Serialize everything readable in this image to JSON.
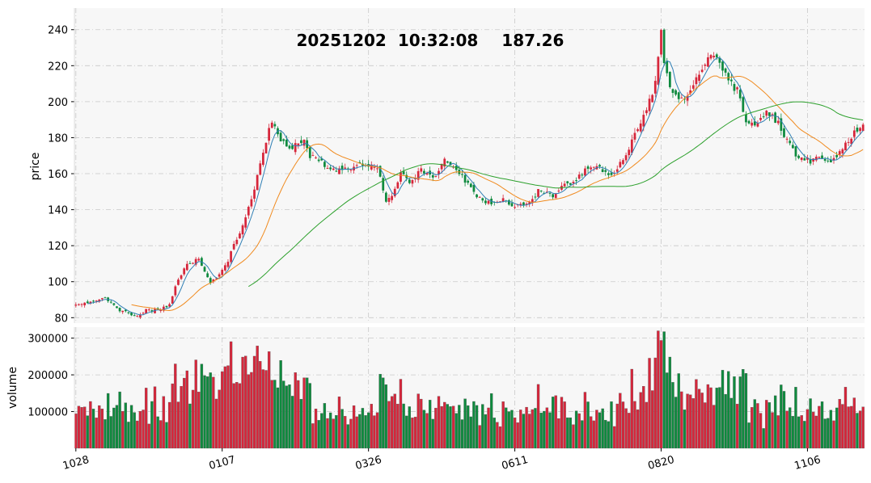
{
  "chart_data": {
    "type": "candlestick",
    "title": {
      "date": "20251202",
      "time": "10:32:08",
      "price": "187.26"
    },
    "price_panel": {
      "ylabel": "price",
      "ylim": [
        77,
        252
      ],
      "yticks": [
        80,
        100,
        120,
        140,
        160,
        180,
        200,
        220,
        240
      ]
    },
    "volume_panel": {
      "ylabel": "volume",
      "ylim": [
        0,
        330000
      ],
      "yticks": [
        100000,
        200000,
        300000
      ]
    },
    "x_tick_labels": [
      "1028",
      "0107",
      "0326",
      "0611",
      "0820",
      "1106"
    ],
    "x_tick_indices": [
      0,
      50,
      100,
      150,
      200,
      250
    ],
    "bar_count": 270,
    "close_keyframes": [
      [
        0,
        87
      ],
      [
        10,
        91
      ],
      [
        14,
        85
      ],
      [
        20,
        81
      ],
      [
        24,
        84
      ],
      [
        28,
        84
      ],
      [
        32,
        87
      ],
      [
        34,
        97
      ],
      [
        38,
        110
      ],
      [
        42,
        113
      ],
      [
        46,
        100
      ],
      [
        48,
        102
      ],
      [
        52,
        112
      ],
      [
        56,
        128
      ],
      [
        60,
        145
      ],
      [
        64,
        172
      ],
      [
        67,
        190
      ],
      [
        70,
        178
      ],
      [
        74,
        175
      ],
      [
        78,
        180
      ],
      [
        80,
        170
      ],
      [
        84,
        166
      ],
      [
        88,
        163
      ],
      [
        92,
        162
      ],
      [
        96,
        164
      ],
      [
        100,
        165
      ],
      [
        103,
        163
      ],
      [
        106,
        145
      ],
      [
        108,
        148
      ],
      [
        111,
        160
      ],
      [
        114,
        155
      ],
      [
        118,
        163
      ],
      [
        122,
        157
      ],
      [
        126,
        167
      ],
      [
        130,
        163
      ],
      [
        134,
        154
      ],
      [
        138,
        146
      ],
      [
        142,
        143
      ],
      [
        146,
        146
      ],
      [
        150,
        142
      ],
      [
        154,
        143
      ],
      [
        158,
        150
      ],
      [
        163,
        148
      ],
      [
        167,
        153
      ],
      [
        171,
        157
      ],
      [
        175,
        163
      ],
      [
        179,
        163
      ],
      [
        183,
        160
      ],
      [
        187,
        168
      ],
      [
        191,
        182
      ],
      [
        195,
        195
      ],
      [
        198,
        210
      ],
      [
        200,
        240
      ],
      [
        201,
        220
      ],
      [
        204,
        205
      ],
      [
        208,
        200
      ],
      [
        212,
        212
      ],
      [
        216,
        225
      ],
      [
        220,
        222
      ],
      [
        223,
        212
      ],
      [
        226,
        206
      ],
      [
        229,
        188
      ],
      [
        232,
        187
      ],
      [
        236,
        195
      ],
      [
        240,
        188
      ],
      [
        243,
        178
      ],
      [
        247,
        168
      ],
      [
        251,
        167
      ],
      [
        255,
        169
      ],
      [
        259,
        167
      ],
      [
        263,
        176
      ],
      [
        266,
        183
      ],
      [
        269,
        187.26
      ]
    ],
    "ma_short_window": 5,
    "ma_medium_window": 20,
    "ma_long_window": 60,
    "series_colors": {
      "up": "#d6263b",
      "down": "#0e8a3e",
      "ma_short": "#2f7fb5",
      "ma_medium": "#f08a1e",
      "ma_long": "#2ca02c"
    },
    "background": "#f7f7f7",
    "grid": "dashed"
  }
}
